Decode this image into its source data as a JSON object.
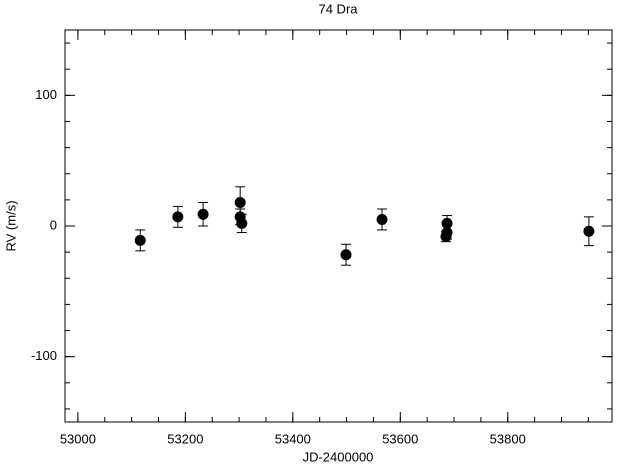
{
  "chart_data": {
    "type": "scatter",
    "title": "74 Dra",
    "x_label": "JD-2400000",
    "y_label": "RV (m/s)",
    "xlim": [
      52976,
      53994
    ],
    "xticks": [
      53000,
      53200,
      53400,
      53600,
      53800
    ],
    "ylim": [
      -150,
      150
    ],
    "yticks": [
      -100,
      0,
      100
    ],
    "color": "#000000",
    "x": [
      53116,
      53186,
      53233,
      53302,
      53302,
      53305,
      53499,
      53566,
      53687,
      53687,
      53685,
      53951
    ],
    "values": [
      -11,
      7,
      9,
      18,
      7,
      2,
      -22,
      5,
      2,
      -5,
      -8,
      -4
    ],
    "errors": [
      8,
      8,
      9,
      12,
      6,
      7,
      8,
      8,
      6,
      5,
      4,
      11
    ]
  }
}
